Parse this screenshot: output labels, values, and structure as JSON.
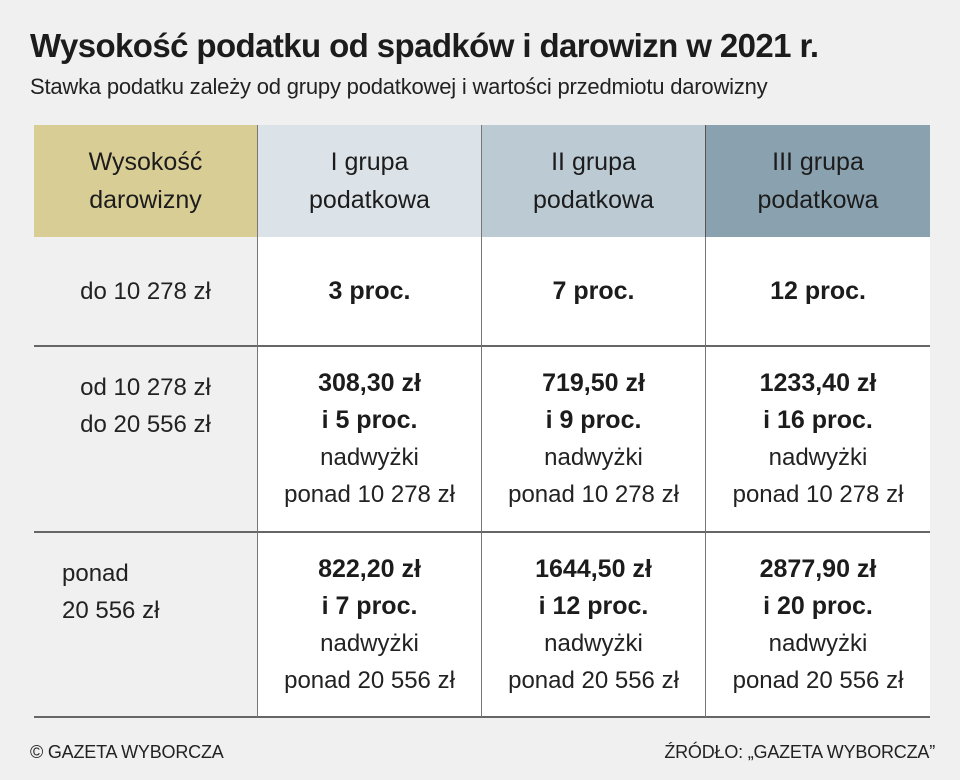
{
  "title": "Wysokość podatku od spadków i darowizn w 2021 r.",
  "subtitle": "Stawka podatku zależy od grupy podatkowej i wartości przedmiotu darowizny",
  "table": {
    "headers": [
      {
        "line1": "Wysokość",
        "line2": "darowizny"
      },
      {
        "line1": "I grupa",
        "line2": "podatkowa"
      },
      {
        "line1": "II grupa",
        "line2": "podatkowa"
      },
      {
        "line1": "III grupa",
        "line2": "podatkowa"
      }
    ],
    "header_colors": [
      "#d9cd96",
      "#dce3e8",
      "#bccad4",
      "#8aa1af"
    ],
    "rows": [
      {
        "label": [
          "do 10 278 zł"
        ],
        "cells": [
          {
            "bold1": "3 proc.",
            "bold2": "",
            "note1": "",
            "note2": ""
          },
          {
            "bold1": "7 proc.",
            "bold2": "",
            "note1": "",
            "note2": ""
          },
          {
            "bold1": "12 proc.",
            "bold2": "",
            "note1": "",
            "note2": ""
          }
        ]
      },
      {
        "label": [
          "od 10 278 zł",
          "do 20 556 zł"
        ],
        "cells": [
          {
            "bold1": "308,30 zł",
            "bold2": "i 5 proc.",
            "note1": "nadwyżki",
            "note2": "ponad 10 278 zł"
          },
          {
            "bold1": "719,50 zł",
            "bold2": "i 9 proc.",
            "note1": "nadwyżki",
            "note2": "ponad 10 278 zł"
          },
          {
            "bold1": "1233,40 zł",
            "bold2": "i 16 proc.",
            "note1": "nadwyżki",
            "note2": "ponad 10 278 zł"
          }
        ]
      },
      {
        "label": [
          "ponad",
          "20 556 zł"
        ],
        "cells": [
          {
            "bold1": "822,20 zł",
            "bold2": "i 7 proc.",
            "note1": "nadwyżki",
            "note2": "ponad 20 556 zł"
          },
          {
            "bold1": "1644,50 zł",
            "bold2": "i 12 proc.",
            "note1": "nadwyżki",
            "note2": "ponad 20 556 zł"
          },
          {
            "bold1": "2877,90 zł",
            "bold2": "i 20 proc.",
            "note1": "nadwyżki",
            "note2": "ponad 20 556 zł"
          }
        ]
      }
    ]
  },
  "footer": {
    "copyright": "© GAZETA WYBORCZA",
    "source": "ŹRÓDŁO: „GAZETA WYBORCZA”"
  }
}
